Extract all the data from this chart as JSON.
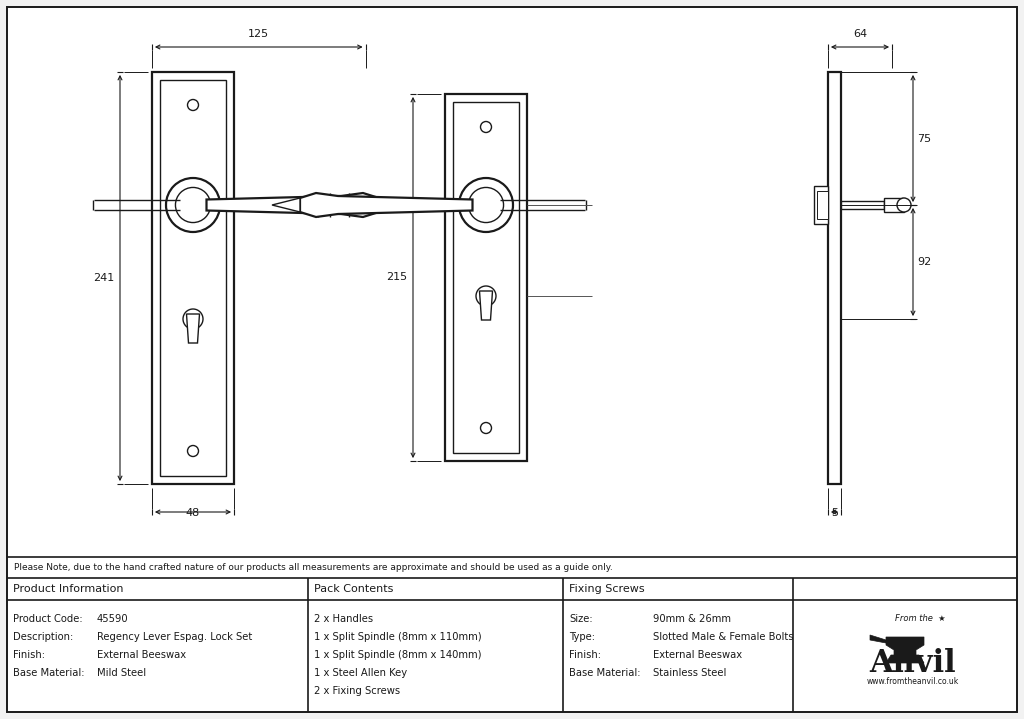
{
  "bg_color": "#f2f2f2",
  "line_color": "#1a1a1a",
  "note_text": "Please Note, due to the hand crafted nature of our products all measurements are approximate and should be used as a guide only.",
  "product_info_header": "Product Information",
  "product_info_rows": [
    [
      "Product Code:",
      "45590"
    ],
    [
      "Description:",
      "Regency Lever Espag. Lock Set"
    ],
    [
      "Finish:",
      "External Beeswax"
    ],
    [
      "Base Material:",
      "Mild Steel"
    ]
  ],
  "pack_contents_header": "Pack Contents",
  "pack_contents_rows": [
    "2 x Handles",
    "1 x Split Spindle (8mm x 110mm)",
    "1 x Split Spindle (8mm x 140mm)",
    "1 x Steel Allen Key",
    "2 x Fixing Screws"
  ],
  "fixing_screws_header": "Fixing Screws",
  "fixing_screws_rows": [
    [
      "Size:",
      "90mm & 26mm"
    ],
    [
      "Type:",
      "Slotted Male & Female Bolts"
    ],
    [
      "Finish:",
      "External Beeswax"
    ],
    [
      "Base Material:",
      "Stainless Steel"
    ]
  ],
  "dim_125": "125",
  "dim_48": "48",
  "dim_241": "241",
  "dim_215": "215",
  "dim_64": "64",
  "dim_75": "75",
  "dim_92": "92",
  "dim_5": "5"
}
